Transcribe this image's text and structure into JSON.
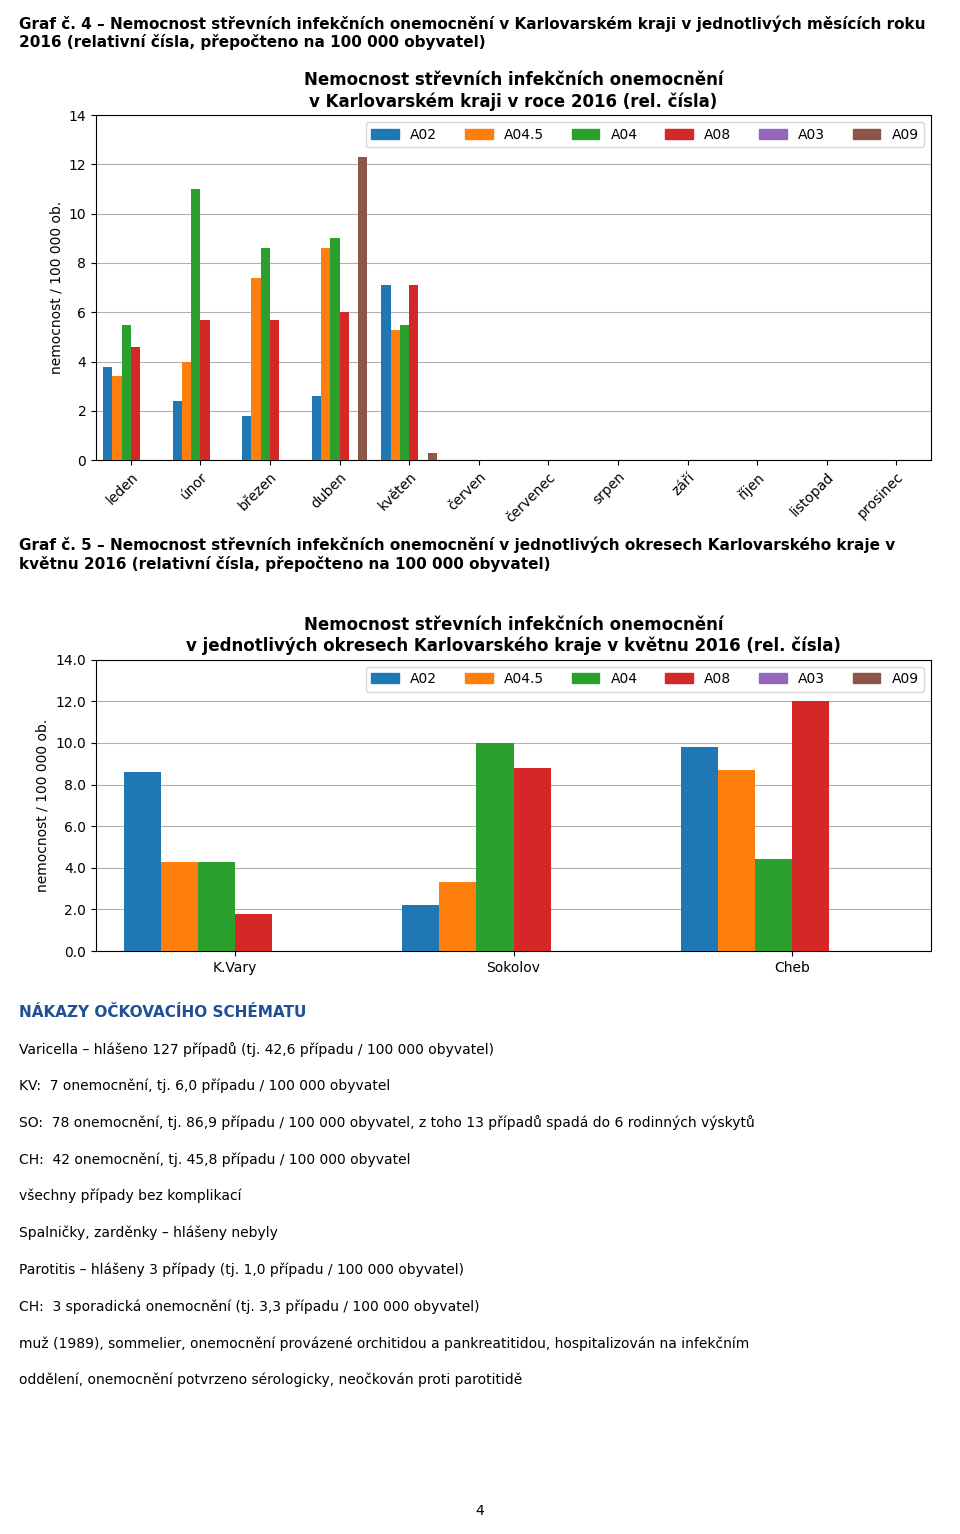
{
  "chart_data": [
    {
      "type": "bar",
      "title": "Graf č. 4 – Nemocnost střevních infekčních onemocnění v Karlovarském kraji v jednotlivých měsících roku 2016 (relativní čísla, přepočteno na 100 000 obyvatel)",
      "subtitle": "Nemocnost střevních infekčních onemocnění\nv Karlovarském kraji v roce 2016 (rel. čísla)",
      "ylabel": "nemocnost / 100 000 ob.",
      "categories": [
        "leden",
        "únor",
        "březen",
        "duben",
        "květen",
        "červen",
        "červenec",
        "srpen",
        "září",
        "říjen",
        "listopad",
        "prosinec"
      ],
      "series": [
        {
          "name": "A02",
          "values": [
            3.8,
            2.4,
            1.8,
            2.6,
            7.1,
            0,
            0,
            0,
            0,
            0,
            0,
            0
          ]
        },
        {
          "name": "A04.5",
          "values": [
            3.4,
            4.0,
            7.4,
            8.6,
            5.3,
            0,
            0,
            0,
            0,
            0,
            0,
            0
          ]
        },
        {
          "name": "A04",
          "values": [
            5.5,
            11.0,
            8.6,
            9.0,
            5.5,
            0,
            0,
            0,
            0,
            0,
            0,
            0
          ]
        },
        {
          "name": "A08",
          "values": [
            4.6,
            5.7,
            5.7,
            6.0,
            7.1,
            0,
            0,
            0,
            0,
            0,
            0,
            0
          ]
        },
        {
          "name": "A03",
          "values": [
            0,
            0,
            0,
            0,
            0,
            0,
            0,
            0,
            0,
            0,
            0,
            0
          ]
        },
        {
          "name": "A09",
          "values": [
            0,
            0,
            0,
            12.3,
            0.3,
            0,
            0,
            0,
            0,
            0,
            0,
            0
          ]
        }
      ],
      "ylim": [
        0,
        14
      ],
      "yticks": [
        0,
        2,
        4,
        6,
        8,
        10,
        12,
        14
      ],
      "grid": true,
      "legend": "upper right"
    },
    {
      "type": "bar",
      "title": "Graf č. 5 – Nemocnost střevních infekčních onemocnění v jednotlivých okresech Karlovarského kraje v květnu 2016 (relativní čísla, přepočteno na 100 000 obyvatel)",
      "subtitle": "Nemocnost střevních infekčních onemocnění\nv jednotlivých okresech Karlovarského kraje v květnu 2016 (rel. čísla)",
      "ylabel": "nemocnost / 100 000 ob.",
      "categories": [
        "K.Vary",
        "Sokolov",
        "Cheb"
      ],
      "series": [
        {
          "name": "A02",
          "values": [
            8.6,
            2.2,
            9.8
          ]
        },
        {
          "name": "A04.5",
          "values": [
            4.3,
            3.3,
            8.7
          ]
        },
        {
          "name": "A04",
          "values": [
            4.3,
            10.0,
            4.4
          ]
        },
        {
          "name": "A08",
          "values": [
            1.8,
            8.8,
            12.0
          ]
        },
        {
          "name": "A03",
          "values": [
            0,
            0,
            0
          ]
        },
        {
          "name": "A09",
          "values": [
            0,
            0,
            0
          ]
        }
      ],
      "ylim": [
        0,
        14
      ],
      "yticks": [
        {
          "value": 0,
          "label": "0.0"
        },
        {
          "value": 2,
          "label": "2.0"
        },
        {
          "value": 4,
          "label": "4.0"
        },
        {
          "value": 6,
          "label": "6.0"
        },
        {
          "value": 8,
          "label": "8.0"
        },
        {
          "value": 10,
          "label": "10.0"
        },
        {
          "value": 12,
          "label": "12.0"
        },
        {
          "value": 14,
          "label": "14.0"
        }
      ],
      "grid": true,
      "legend": "upper right"
    }
  ],
  "annotations": [
    "NÁKAZY OČKOVACÍHO SCHÉMATU",
    "Varicella – hlášeno 127 případů (tj. 42,6 případu / 100 000 obyvatel)",
    "KV:  7 onemocnění, tj. 6,0 případu / 100 000 obyvatel",
    "SO:  78 onemocnění, tj. 86,9 případu / 100 000 obyvatel, z toho 13 případů spadá do 6 rodinných výskytů",
    "CH:  42 onemocnění, tj. 45,8 případu / 100 000 obyvatel",
    "všechny případy bez komplikací",
    "Spalničky, zarděnky – hlášeny nebyly",
    "Parotitis – hlášeny 3 případy (tj. 1,0 případu / 100 000 obyvatel)",
    "CH:  3 sporadická onemocnění (tj. 3,3 případu / 100 000 obyvatel)",
    "muž (1989), sommelier, onemocnění provázené orchitidou a pankreatitidou, hospitalizován na infekčním",
    "oddělení, onemocnění potvrzeno sérologicky, neočkován proti parotitidě",
    "4"
  ]
}
